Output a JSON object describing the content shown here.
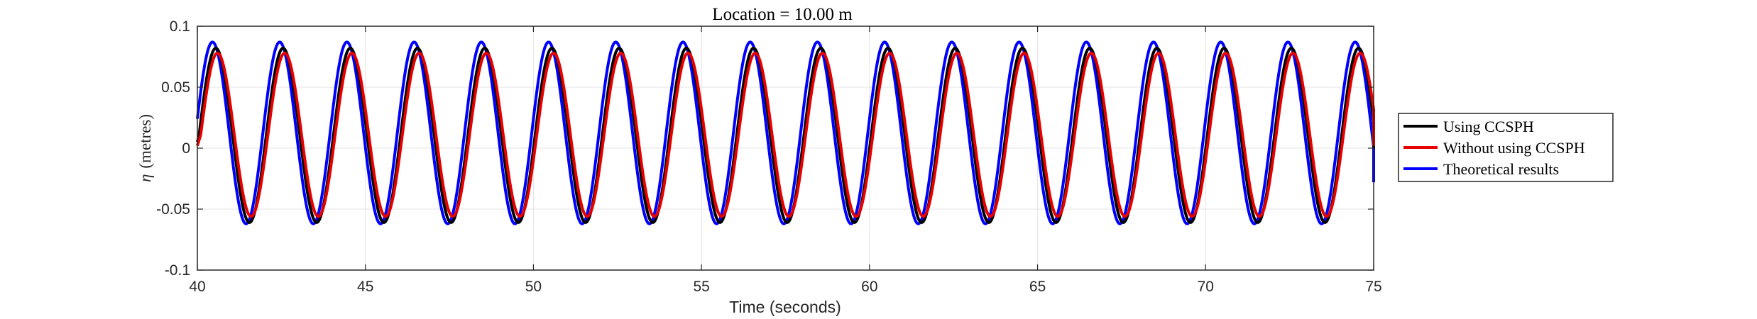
{
  "chart_data": {
    "type": "line",
    "title": "Location = 10.00 m",
    "xlabel": "Time (seconds)",
    "ylabel_symbol": "η",
    "ylabel_unit": "(metres)",
    "xlim": [
      40,
      75
    ],
    "ylim": [
      -0.1,
      0.1
    ],
    "x_ticks": [
      40,
      45,
      50,
      55,
      60,
      65,
      70,
      75
    ],
    "x_tick_labels": [
      "40",
      "45",
      "50",
      "55",
      "60",
      "65",
      "70",
      "75"
    ],
    "y_ticks": [
      0.1,
      0.05,
      0,
      -0.05,
      -0.1
    ],
    "y_tick_labels": [
      "0.1",
      "0.05",
      "0",
      "-0.05",
      "-0.1"
    ],
    "grid": true,
    "legend_position": "outside-right",
    "wave_period": 2.0,
    "sample_step": 0.02,
    "series": [
      {
        "name": "Using CCSPH",
        "color": "#000000",
        "first_crest_time": 40.55,
        "crest": 0.082,
        "trough": -0.061,
        "start_y": 0.005,
        "end_y": 0.0
      },
      {
        "name": "Without using CCSPH",
        "color": "#e60000",
        "first_crest_time": 40.6,
        "crest": 0.078,
        "trough": -0.056,
        "start_y": 0.002,
        "end_y": 0.002
      },
      {
        "name": "Theoretical results",
        "color": "#0000ff",
        "first_crest_time": 40.45,
        "crest": 0.087,
        "trough": -0.062,
        "start_y": 0.008,
        "end_y": -0.028
      }
    ]
  }
}
